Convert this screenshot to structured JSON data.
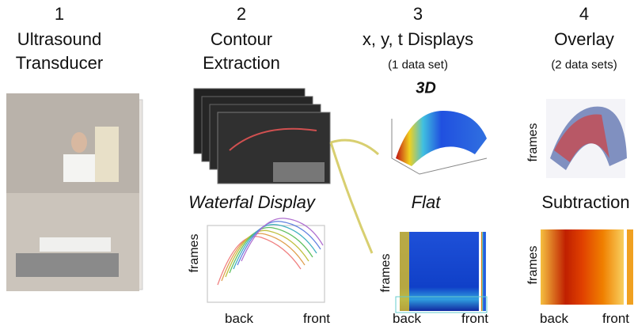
{
  "steps": [
    {
      "number": "1",
      "lines": [
        "Ultrasound",
        "Transducer"
      ]
    },
    {
      "number": "2",
      "lines": [
        "Contour",
        "Extraction"
      ]
    },
    {
      "number": "3",
      "lines": [
        "x, y, t Displays"
      ],
      "note": "(1 data set)"
    },
    {
      "number": "4",
      "lines": [
        "Overlay"
      ],
      "note": "(2 data sets)"
    }
  ],
  "panels": {
    "three_d": {
      "title": "3D"
    },
    "waterfall": {
      "title": "Waterfal Display",
      "y_label": "frames",
      "x_left": "back",
      "x_right": "front"
    },
    "flat": {
      "title": "Flat",
      "y_label": "frames",
      "x_left": "back",
      "x_right": "front"
    },
    "overlay": {
      "y_label": "frames"
    },
    "subtraction": {
      "title": "Subtraction",
      "y_label": "frames",
      "x_left": "back",
      "x_right": "front"
    }
  }
}
